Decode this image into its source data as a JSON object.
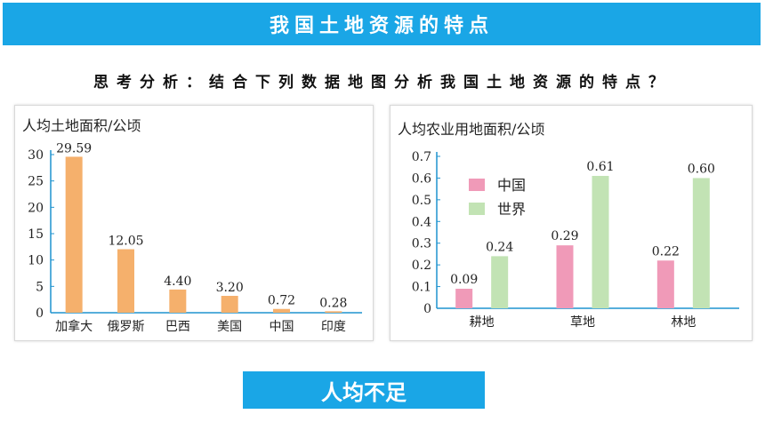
{
  "header": {
    "title": "我国土地资源的特点"
  },
  "question": "思考分析：结合下列数据地图分析我国土地资源的特点？",
  "conclusion": "人均不足",
  "colors": {
    "accent": "#1aa6e6",
    "orange": "#f5b06c",
    "pink": "#f09ab8",
    "green": "#c2e3b4",
    "axis": "#1f93cf"
  },
  "chart_data": [
    {
      "type": "bar",
      "title": "人均土地面积/公顷",
      "categories": [
        "加拿大",
        "俄罗斯",
        "巴西",
        "美国",
        "中国",
        "印度"
      ],
      "values": [
        29.59,
        12.05,
        4.4,
        3.2,
        0.72,
        0.28
      ],
      "value_labels": [
        "29.59",
        "12.05",
        "4.40",
        "3.20",
        "0.72",
        "0.28"
      ],
      "yticks": [
        "0",
        "5",
        "10",
        "15",
        "20",
        "25",
        "30"
      ],
      "ylim": [
        0,
        30
      ],
      "grid": false
    },
    {
      "type": "bar",
      "title": "人均农业用地面积/公顷",
      "categories": [
        "耕地",
        "草地",
        "林地"
      ],
      "series": [
        {
          "name": "中国",
          "values": [
            0.09,
            0.29,
            0.22
          ],
          "labels": [
            "0.09",
            "0.29",
            "0.22"
          ]
        },
        {
          "name": "世界",
          "values": [
            0.24,
            0.61,
            0.6
          ],
          "labels": [
            "0.24",
            "0.61",
            "0.60"
          ]
        }
      ],
      "yticks": [
        "0",
        "0.1",
        "0.2",
        "0.3",
        "0.4",
        "0.5",
        "0.6",
        "0.7"
      ],
      "ylim": [
        0,
        0.7
      ],
      "legend": "top-left",
      "grid": false
    }
  ]
}
